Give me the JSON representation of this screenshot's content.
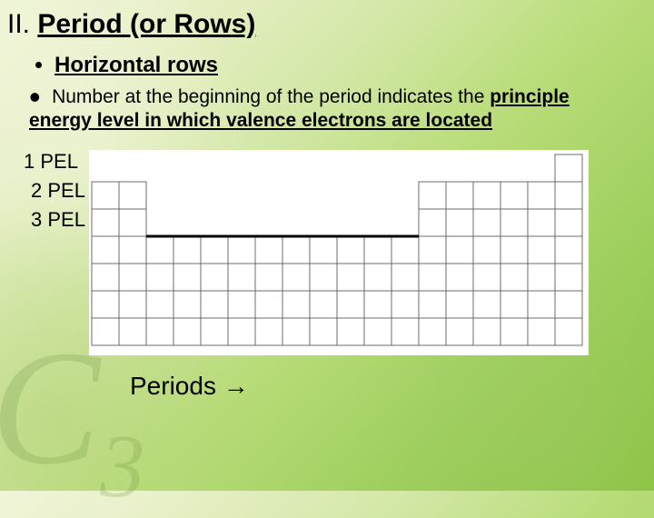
{
  "title": {
    "prefix": "II. ",
    "main": "Period (or Rows)"
  },
  "bullet1": "Horizontal rows",
  "para_lead": "Number at the beginning of the period indicates the ",
  "para_bold": "principle energy level in which valence electrons are located",
  "pel_labels": [
    "1 PEL",
    "2 PEL",
    "3 PEL"
  ],
  "periods_label": "Periods →",
  "bg_symbol": "C",
  "bg_subscript": "3",
  "colors": {
    "grid_stroke": "#6b6b6b",
    "heavy_stroke": "#000000",
    "table_bg": "#ffffff",
    "text": "#000000"
  },
  "periodic_table": {
    "cell_size": 30,
    "cols": 18,
    "rows": 7,
    "group_row_start": [
      1,
      1,
      3,
      3,
      3,
      3,
      3,
      3,
      3,
      3,
      3,
      3,
      1,
      1,
      1,
      1,
      1,
      0
    ],
    "grid_line_width": 1,
    "heavy_line_width": 3,
    "heavy_segment": {
      "from_col": 2,
      "to_col": 12,
      "row": 3
    }
  }
}
